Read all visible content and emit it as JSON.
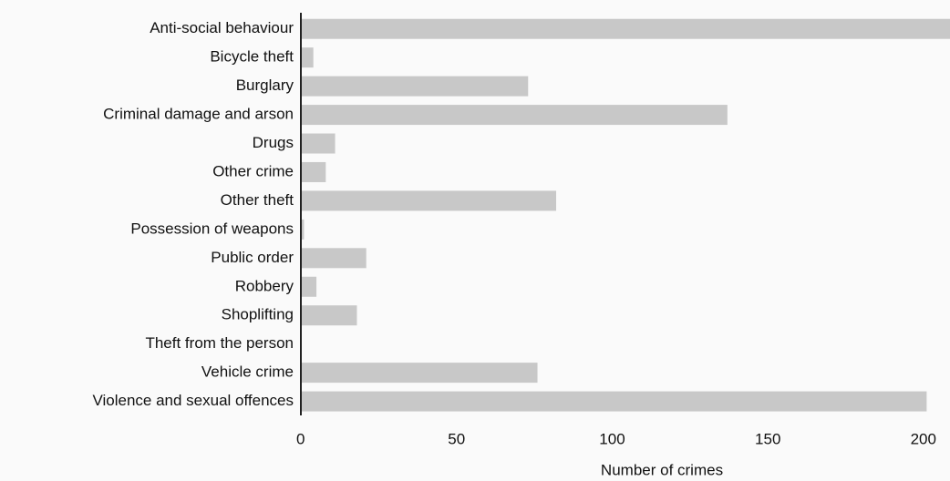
{
  "chart_data": {
    "type": "barh",
    "x_label": "Number of crimes",
    "categories": [
      "Anti-social behaviour",
      "Bicycle theft",
      "Burglary",
      "Criminal damage and arson",
      "Drugs",
      "Other crime",
      "Other theft",
      "Possession of weapons",
      "Public order",
      "Robbery",
      "Shoplifting",
      "Theft from the person",
      "Vehicle crime",
      "Violence and sexual offences"
    ],
    "values": [
      210,
      4,
      73,
      137,
      11,
      8,
      82,
      1,
      21,
      5,
      18,
      0,
      76,
      201
    ],
    "color": "#c8c8c8",
    "xlim": [
      0,
      208.5
    ],
    "xticks": [
      0,
      50,
      100,
      150,
      200
    ]
  }
}
